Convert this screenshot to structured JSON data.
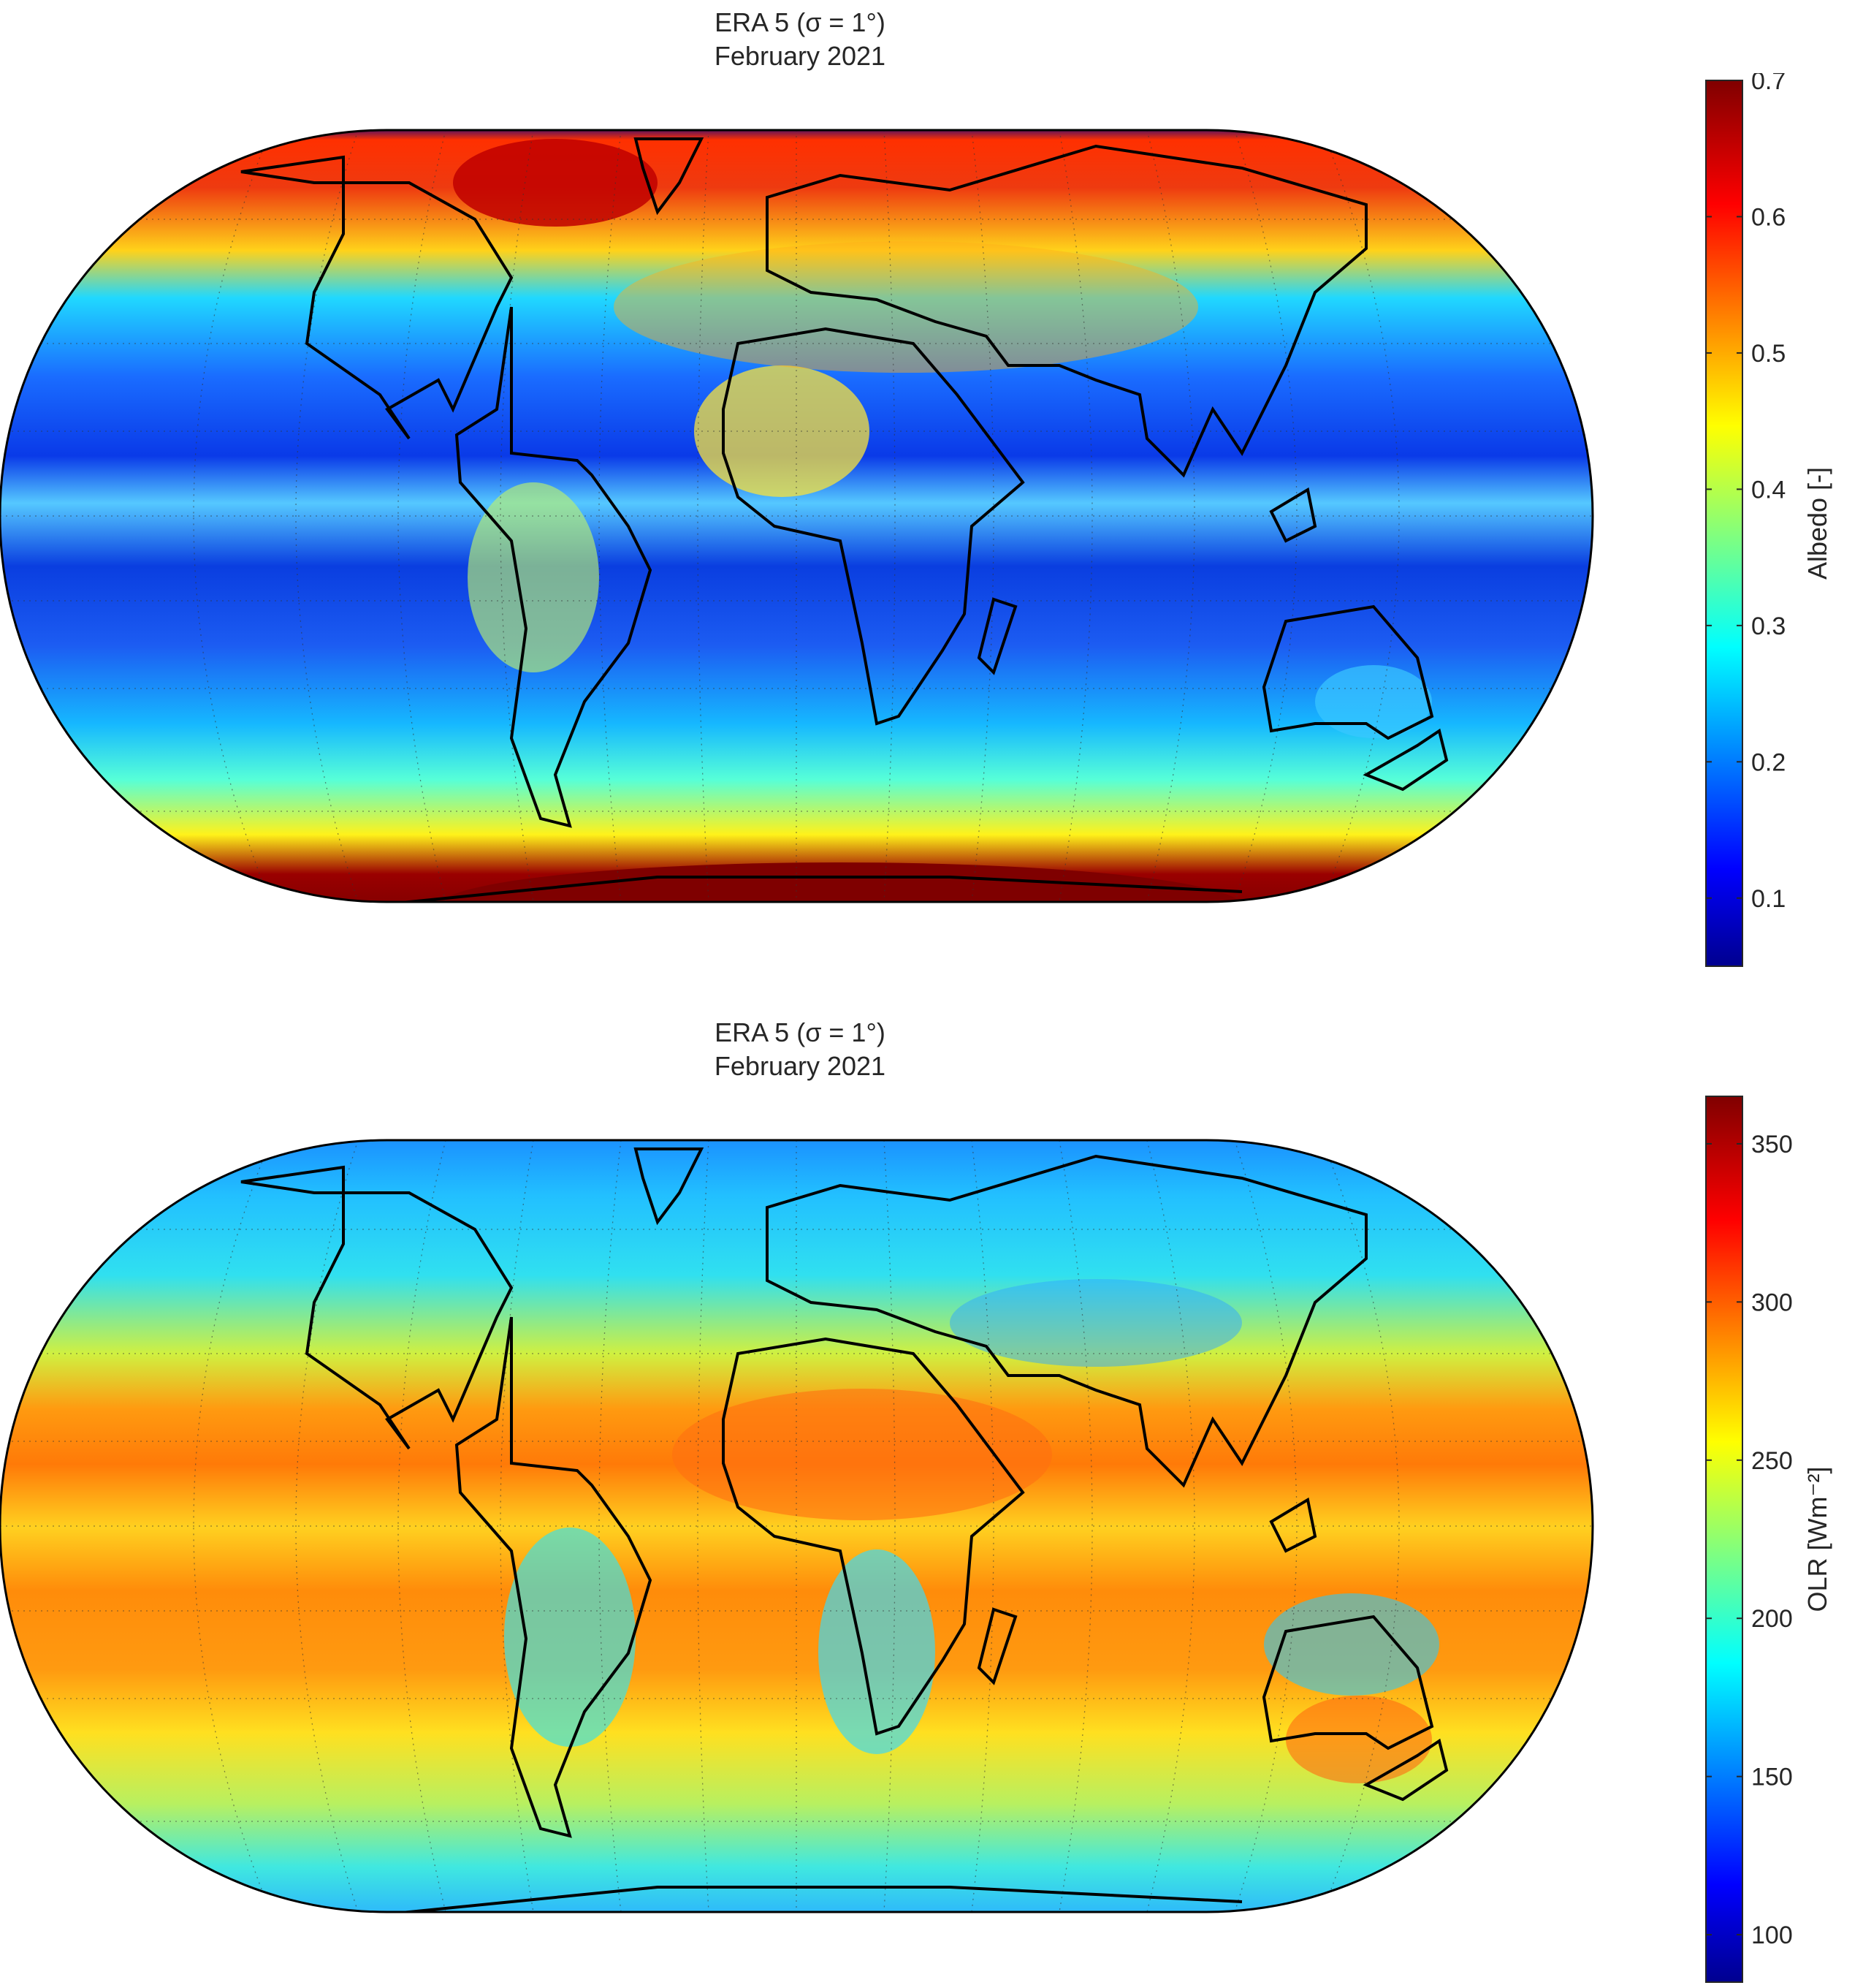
{
  "figure": {
    "panels": [
      {
        "title_line1": "ERA 5 (σ = 1°)",
        "title_line2": "February 2021",
        "variable": "albedo",
        "colorbar": {
          "label": "Albedo [-]",
          "range": [
            0.05,
            0.7
          ],
          "ticks": [
            0.1,
            0.2,
            0.3,
            0.4,
            0.5,
            0.6,
            0.7
          ],
          "tick_labels": [
            "0.1",
            "0.2",
            "0.3",
            "0.4",
            "0.5",
            "0.6",
            "0.7"
          ],
          "colormap": "jet"
        }
      },
      {
        "title_line1": "ERA 5 (σ = 1°)",
        "title_line2": "February 2021",
        "variable": "olr",
        "colorbar": {
          "label": "OLR [Wm⁻²]",
          "range": [
            85,
            365
          ],
          "ticks": [
            100,
            150,
            200,
            250,
            300,
            350
          ],
          "tick_labels": [
            "100",
            "150",
            "200",
            "250",
            "300",
            "350"
          ],
          "colormap": "jet"
        }
      }
    ]
  },
  "chart_data": [
    {
      "type": "heatmap",
      "projection": "equal-earth",
      "grid": "on",
      "title": "ERA 5 (σ = 1°) February 2021",
      "colorbar_label": "Albedo [-]",
      "clim": [
        0.05,
        0.7
      ],
      "zonal_profile": {
        "lat": [
          -90,
          -75,
          -60,
          -45,
          -30,
          -15,
          0,
          15,
          30,
          45,
          60,
          75,
          90
        ],
        "values": [
          0.7,
          0.7,
          0.42,
          0.35,
          0.22,
          0.18,
          0.14,
          0.2,
          0.25,
          0.33,
          0.45,
          0.62,
          0.7
        ]
      }
    },
    {
      "type": "heatmap",
      "projection": "equal-earth",
      "grid": "on",
      "title": "ERA 5 (σ = 1°) February 2021",
      "colorbar_label": "OLR [Wm-2]",
      "clim": [
        85,
        365
      ],
      "zonal_profile": {
        "lat": [
          -90,
          -75,
          -60,
          -45,
          -30,
          -15,
          0,
          15,
          30,
          45,
          60,
          75,
          90
        ],
        "values": [
          185,
          190,
          215,
          240,
          270,
          285,
          255,
          285,
          255,
          215,
          195,
          180,
          170
        ]
      }
    }
  ]
}
